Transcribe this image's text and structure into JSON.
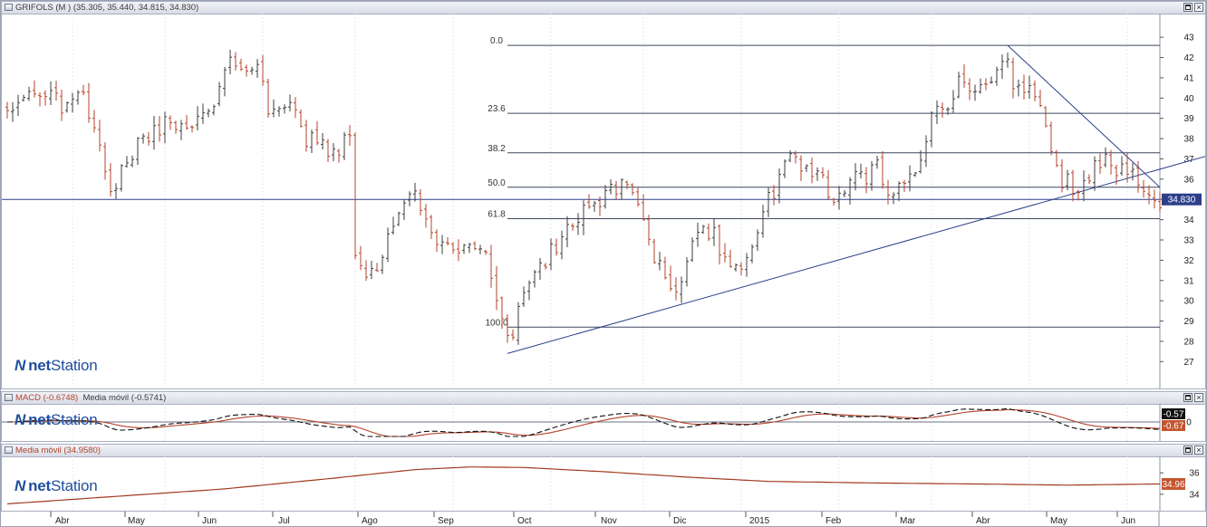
{
  "panels": {
    "main": {
      "header": "GRIFOLS (M ) (35.305, 35.440, 34.815, 34.830)",
      "logo_mark": "N",
      "logo_bold": "net",
      "logo_light": "Station"
    },
    "macd": {
      "header_macd": "MACD (-0.6748)",
      "header_ma": "Media móvil (-0.5741)",
      "logo_mark": "N",
      "logo_bold": "net",
      "logo_light": "Station"
    },
    "ma": {
      "header": "Media móvil (34.9580)",
      "logo_mark": "N",
      "logo_bold": "net",
      "logo_light": "Station"
    }
  },
  "colors": {
    "up_bar": "#3c3c3c",
    "down_bar": "#b5432a",
    "trendline": "#2b3f8a",
    "fib": "#3d4660",
    "macd": "#111111",
    "signal": "#b5432a",
    "moving_average": "#a23a20"
  },
  "chart_data": [
    {
      "type": "ohlc-bar",
      "title": "GRIFOLS (M ) (35.305, 35.440, 34.815, 34.830)",
      "xlabel": "",
      "ylabel": "",
      "y_ticks": [
        27,
        28,
        29,
        30,
        31,
        32,
        33,
        34,
        35,
        36,
        37,
        38,
        39,
        40,
        41,
        42,
        43
      ],
      "ylim": [
        26.3,
        43.9
      ],
      "x_month_labels": [
        "Abr",
        "May",
        "Jun",
        "Jul",
        "Ago",
        "Sep",
        "Oct",
        "Nov",
        "Dic",
        "2015",
        "Feb",
        "Mar",
        "Abr",
        "May",
        "Jun"
      ],
      "close_path": [
        [
          0,
          39.4
        ],
        [
          6,
          40.4
        ],
        [
          10,
          39.6
        ],
        [
          14,
          40.0
        ],
        [
          17,
          38.0
        ],
        [
          19,
          35.2
        ],
        [
          20,
          35.8
        ],
        [
          22,
          37.2
        ],
        [
          26,
          38.0
        ],
        [
          29,
          38.9
        ],
        [
          33,
          38.6
        ],
        [
          36,
          39.3
        ],
        [
          38,
          40.0
        ],
        [
          40,
          41.8
        ],
        [
          43,
          41.2
        ],
        [
          46,
          41.5
        ],
        [
          48,
          39.6
        ],
        [
          52,
          39.5
        ],
        [
          55,
          38.0
        ],
        [
          58,
          37.8
        ],
        [
          60,
          37.2
        ],
        [
          63,
          38.5
        ],
        [
          64,
          32.5
        ],
        [
          66,
          31.3
        ],
        [
          68,
          31.8
        ],
        [
          71,
          33.4
        ],
        [
          74,
          35.1
        ],
        [
          76,
          34.9
        ],
        [
          79,
          33.2
        ],
        [
          82,
          32.2
        ],
        [
          85,
          32.9
        ],
        [
          88,
          32.0
        ],
        [
          90,
          30.2
        ],
        [
          92,
          28.0
        ],
        [
          93,
          28.4
        ],
        [
          95,
          30.2
        ],
        [
          98,
          31.7
        ],
        [
          101,
          32.8
        ],
        [
          104,
          33.8
        ],
        [
          107,
          34.5
        ],
        [
          110,
          35.2
        ],
        [
          113,
          35.8
        ],
        [
          116,
          35.0
        ],
        [
          118,
          33.0
        ],
        [
          121,
          31.0
        ],
        [
          123,
          30.4
        ],
        [
          125,
          32.2
        ],
        [
          127,
          33.5
        ],
        [
          130,
          33.4
        ],
        [
          132,
          32.0
        ],
        [
          135,
          31.8
        ],
        [
          137,
          32.8
        ],
        [
          139,
          34.6
        ],
        [
          142,
          35.8
        ],
        [
          144,
          37.2
        ],
        [
          147,
          36.6
        ],
        [
          150,
          35.8
        ],
        [
          152,
          34.9
        ],
        [
          155,
          35.8
        ],
        [
          158,
          36.2
        ],
        [
          160,
          37.0
        ],
        [
          162,
          35.3
        ],
        [
          165,
          35.8
        ],
        [
          168,
          36.6
        ],
        [
          170,
          39.3
        ],
        [
          173,
          39.6
        ],
        [
          175,
          40.8
        ],
        [
          177,
          40.0
        ],
        [
          180,
          40.4
        ],
        [
          182,
          41.0
        ],
        [
          184,
          42.2
        ],
        [
          185,
          40.2
        ],
        [
          188,
          40.5
        ],
        [
          190,
          39.3
        ],
        [
          192,
          37.4
        ],
        [
          194,
          36.0
        ],
        [
          196,
          35.6
        ],
        [
          198,
          35.8
        ],
        [
          200,
          36.6
        ],
        [
          202,
          37.2
        ],
        [
          204,
          36.5
        ],
        [
          207,
          36.2
        ],
        [
          209,
          35.6
        ],
        [
          211,
          35.0
        ],
        [
          212,
          34.83
        ]
      ],
      "price_marker": "34.830",
      "fibonacci": {
        "levels": [
          {
            "label": "0.0",
            "value": 42.6
          },
          {
            "label": "23.6",
            "value": 39.25
          },
          {
            "label": "38.2",
            "value": 37.3
          },
          {
            "label": "50.0",
            "value": 35.6
          },
          {
            "label": "61.8",
            "value": 34.05
          },
          {
            "label": "100.0",
            "value": 28.7
          }
        ]
      },
      "trendlines": [
        {
          "from": [
            92,
            27.4
          ],
          "to": [
            224,
            37.4
          ]
        },
        {
          "from": [
            184,
            42.6
          ],
          "to": [
            212,
            35.6
          ]
        }
      ],
      "horizontal_line": 35.0
    },
    {
      "type": "line",
      "title": "MACD (-0.6748)",
      "series": [
        {
          "name": "MACD (-0.6748)",
          "role": "macd"
        },
        {
          "name": "Media móvil (-0.5741)",
          "role": "signal"
        }
      ],
      "ylim": [
        -1.5,
        1.5
      ],
      "y_ticks": [
        0
      ],
      "value_markers": [
        "-0.57",
        "-0.67"
      ]
    },
    {
      "type": "line",
      "title": "Media móvil (34.9580)",
      "series": [
        {
          "name": "Media móvil (34.9580)"
        }
      ],
      "y_ticks": [
        34,
        36
      ],
      "ylim": [
        32.8,
        37.2
      ],
      "value_marker": "34.96",
      "path": [
        [
          0,
          33.1
        ],
        [
          20,
          33.8
        ],
        [
          40,
          34.5
        ],
        [
          60,
          35.5
        ],
        [
          75,
          36.3
        ],
        [
          85,
          36.55
        ],
        [
          95,
          36.5
        ],
        [
          110,
          36.1
        ],
        [
          125,
          35.6
        ],
        [
          140,
          35.2
        ],
        [
          160,
          35.05
        ],
        [
          180,
          34.95
        ],
        [
          195,
          34.85
        ],
        [
          212,
          34.96
        ]
      ]
    }
  ]
}
